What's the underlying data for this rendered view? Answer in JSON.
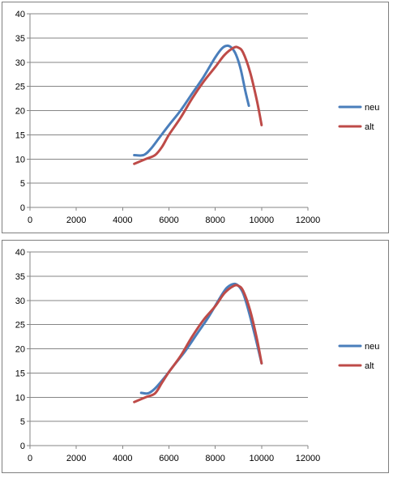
{
  "chart_data": [
    {
      "type": "line",
      "xlim": [
        0,
        12000
      ],
      "ylim": [
        0,
        40
      ],
      "x_ticks": [
        "0",
        "2000",
        "4000",
        "6000",
        "8000",
        "10000",
        "12000"
      ],
      "y_ticks": [
        "0",
        "5",
        "10",
        "15",
        "20",
        "25",
        "30",
        "35",
        "40"
      ],
      "grid": "horizontal",
      "legend": "right",
      "series": [
        {
          "name": "neu",
          "color": "#4a7ebb",
          "points": [
            [
              4500,
              10.8
            ],
            [
              4900,
              10.8
            ],
            [
              5200,
              12
            ],
            [
              5600,
              14.5
            ],
            [
              6000,
              17
            ],
            [
              6500,
              20
            ],
            [
              7000,
              23.5
            ],
            [
              7500,
              27
            ],
            [
              8000,
              31
            ],
            [
              8300,
              32.9
            ],
            [
              8500,
              33.4
            ],
            [
              8700,
              33
            ],
            [
              8900,
              31.5
            ],
            [
              9100,
              28.5
            ],
            [
              9300,
              24
            ],
            [
              9450,
              21
            ]
          ]
        },
        {
          "name": "alt",
          "color": "#be4b48",
          "points": [
            [
              4500,
              9
            ],
            [
              5000,
              10
            ],
            [
              5400,
              10.8
            ],
            [
              5700,
              12.5
            ],
            [
              6000,
              15
            ],
            [
              6500,
              18.5
            ],
            [
              7000,
              22.5
            ],
            [
              7500,
              26
            ],
            [
              8000,
              29
            ],
            [
              8400,
              31.5
            ],
            [
              8800,
              33
            ],
            [
              9000,
              33
            ],
            [
              9200,
              32
            ],
            [
              9500,
              28
            ],
            [
              9800,
              22
            ],
            [
              10000,
              17
            ]
          ]
        }
      ]
    },
    {
      "type": "line",
      "xlim": [
        0,
        12000
      ],
      "ylim": [
        0,
        40
      ],
      "x_ticks": [
        "0",
        "2000",
        "4000",
        "6000",
        "8000",
        "10000",
        "12000"
      ],
      "y_ticks": [
        "0",
        "5",
        "10",
        "15",
        "20",
        "25",
        "30",
        "35",
        "40"
      ],
      "grid": "horizontal",
      "legend": "right",
      "series": [
        {
          "name": "neu",
          "color": "#4a7ebb",
          "points": [
            [
              4800,
              10.9
            ],
            [
              5100,
              10.8
            ],
            [
              5400,
              11.8
            ],
            [
              5800,
              14
            ],
            [
              6200,
              16.5
            ],
            [
              6700,
              19.5
            ],
            [
              7200,
              23
            ],
            [
              7700,
              26.5
            ],
            [
              8200,
              30.5
            ],
            [
              8500,
              32.6
            ],
            [
              8800,
              33.4
            ],
            [
              9000,
              33
            ],
            [
              9200,
              31.5
            ],
            [
              9400,
              28.5
            ],
            [
              9700,
              23
            ],
            [
              10000,
              17
            ]
          ]
        },
        {
          "name": "alt",
          "color": "#be4b48",
          "points": [
            [
              4500,
              9
            ],
            [
              5000,
              10
            ],
            [
              5400,
              10.8
            ],
            [
              5700,
              13
            ],
            [
              6000,
              15.2
            ],
            [
              6500,
              18.5
            ],
            [
              7000,
              22.5
            ],
            [
              7500,
              26
            ],
            [
              8000,
              28.8
            ],
            [
              8400,
              31.5
            ],
            [
              8800,
              33
            ],
            [
              9000,
              33
            ],
            [
              9200,
              32
            ],
            [
              9500,
              28
            ],
            [
              9800,
              22
            ],
            [
              10000,
              17
            ]
          ]
        }
      ]
    }
  ]
}
